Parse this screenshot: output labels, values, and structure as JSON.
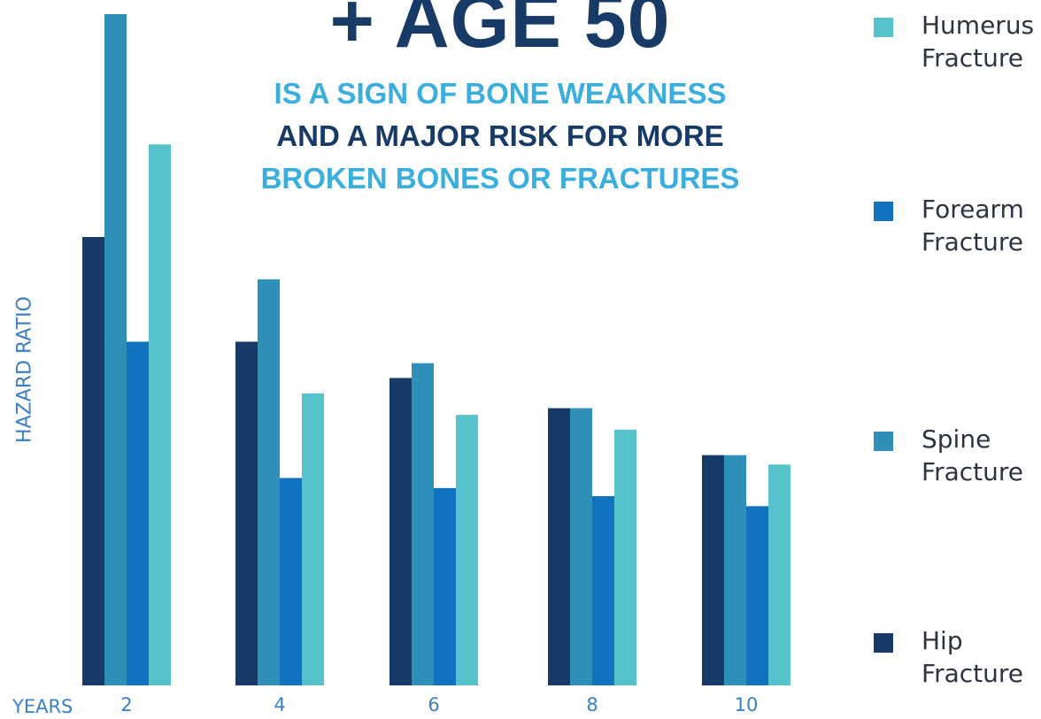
{
  "headline": {
    "main": "+ AGE 50",
    "line1": "IS A SIGN OF BONE WEAKNESS",
    "line2": "AND A MAJOR RISK FOR MORE",
    "line3": "BROKEN BONES OR FRACTURES"
  },
  "chart_data": {
    "type": "bar",
    "xlabel": "YEARS",
    "ylabel": "HAZARD RATIO",
    "categories": [
      "2",
      "4",
      "6",
      "8",
      "10"
    ],
    "ylim": [
      0,
      100
    ],
    "grid": false,
    "legend_position": "right",
    "series": [
      {
        "name": "Hip\nFracture",
        "color": "#173a66",
        "values": [
          66.8,
          51.2,
          45.8,
          41.3,
          34.3
        ]
      },
      {
        "name": "Spine\nFracture",
        "color": "#2e8fb8",
        "values": [
          100,
          60.5,
          48.0,
          41.3,
          34.3
        ]
      },
      {
        "name": "Forearm\nFracture",
        "color": "#1172bf",
        "values": [
          51.2,
          30.9,
          29.4,
          28.2,
          26.7
        ]
      },
      {
        "name": "Humerus\nFracture",
        "color": "#56c3cc",
        "values": [
          80.6,
          43.5,
          40.3,
          38.1,
          32.9
        ]
      }
    ],
    "legend_order": [
      3,
      2,
      1,
      0
    ]
  }
}
